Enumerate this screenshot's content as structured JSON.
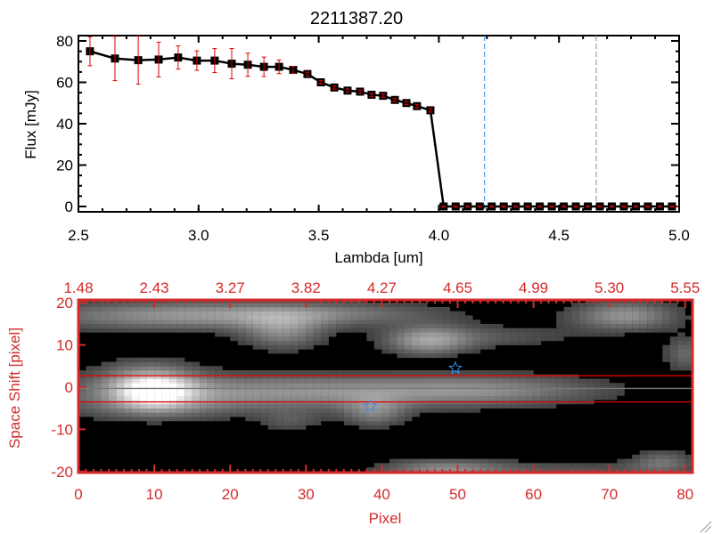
{
  "chart_data": [
    {
      "type": "line",
      "title": "2211387.20",
      "xlabel": "Lambda [um]",
      "ylabel": "Flux [mJy]",
      "xlim": [
        2.5,
        5.0
      ],
      "ylim": [
        -2,
        82
      ],
      "xticks": [
        "2.5",
        "3.0",
        "3.5",
        "4.0",
        "4.5",
        "5.0"
      ],
      "yticks": [
        "0",
        "20",
        "40",
        "60",
        "80"
      ],
      "series": [
        {
          "name": "flux",
          "x": [
            2.548,
            2.652,
            2.749,
            2.834,
            2.915,
            2.993,
            3.067,
            3.138,
            3.205,
            3.272,
            3.335,
            3.394,
            3.453,
            3.509,
            3.565,
            3.62,
            3.672,
            3.72,
            3.768,
            3.817,
            3.865,
            3.909,
            3.965,
            4.02,
            4.07,
            4.12,
            4.17,
            4.22,
            4.27,
            4.32,
            4.37,
            4.42,
            4.47,
            4.52,
            4.57,
            4.62,
            4.67,
            4.72,
            4.77,
            4.82,
            4.87,
            4.92,
            4.97
          ],
          "y": [
            75,
            71.5,
            70.7,
            71,
            72,
            70.5,
            70.5,
            69,
            68.5,
            67.5,
            67.5,
            66,
            64,
            60,
            57.5,
            56,
            55.5,
            54,
            53.5,
            51.5,
            50,
            48.5,
            46.5,
            0,
            0,
            0,
            0,
            0,
            0,
            0,
            0,
            0,
            0,
            0,
            0,
            0,
            0,
            0,
            0,
            0,
            0,
            0,
            0
          ],
          "yerr": [
            7,
            10.7,
            11.6,
            8.4,
            5.6,
            4.7,
            5.8,
            7.3,
            5.6,
            4.7,
            3.3,
            1.7,
            0.9,
            0.8,
            0.8,
            0.8,
            0.8,
            0.8,
            0.8,
            0.8,
            0.8,
            0.8,
            0.9,
            0.3,
            0.3,
            0.3,
            0.3,
            0.3,
            0.3,
            0.3,
            0.3,
            0.3,
            0.3,
            0.3,
            0.3,
            0.3,
            0.3,
            0.3,
            0.3,
            0.3,
            0.3,
            0.3,
            0.3
          ]
        }
      ],
      "vlines": [
        {
          "x": 4.19,
          "color": "#3a8ee6"
        },
        {
          "x": 4.655,
          "color": "#888888"
        }
      ],
      "zero_line": {
        "from": 4.0,
        "to": 5.0,
        "color": "#e00000"
      },
      "colors": {
        "line": "#000000",
        "error": "#e00000"
      }
    },
    {
      "type": "heatmap",
      "xlabel": "Pixel",
      "ylabel": "Space Shift [pixel]",
      "xlim": [
        0,
        81
      ],
      "ylim": [
        -21,
        21
      ],
      "xticks": [
        "0",
        "10",
        "20",
        "30",
        "40",
        "50",
        "60",
        "70",
        "80"
      ],
      "yticks": [
        "-20",
        "-10",
        "0",
        "10",
        "20"
      ],
      "top_xticks": [
        "1.48",
        "2.43",
        "3.27",
        "3.82",
        "4.27",
        "4.65",
        "4.99",
        "5.30",
        "5.55"
      ],
      "blobs": [
        {
          "x": 10,
          "y": -1,
          "sx": 3.5,
          "sy": 2.6,
          "amp": 0.75
        },
        {
          "x": 28,
          "y": -1,
          "sx": 22,
          "sy": 3,
          "amp": 0.5
        },
        {
          "x": 55,
          "y": -0.5,
          "sx": 10,
          "sy": 2.5,
          "amp": 0.25
        },
        {
          "x": 9,
          "y": 3,
          "sx": 5,
          "sy": 3,
          "amp": 0.3
        },
        {
          "x": 10,
          "y": -5,
          "sx": 8,
          "sy": 2.5,
          "amp": 0.25
        },
        {
          "x": 12,
          "y": 17,
          "sx": 14,
          "sy": 2.5,
          "amp": 0.45
        },
        {
          "x": 33,
          "y": 17.5,
          "sx": 12,
          "sy": 2,
          "amp": 0.3
        },
        {
          "x": 27,
          "y": 13,
          "sx": 4,
          "sy": 3,
          "amp": 0.4
        },
        {
          "x": 46,
          "y": 11,
          "sx": 4,
          "sy": 2.5,
          "amp": 0.5
        },
        {
          "x": 55,
          "y": 12,
          "sx": 8,
          "sy": 2,
          "amp": 0.2
        },
        {
          "x": 72,
          "y": 17,
          "sx": 5,
          "sy": 2.5,
          "amp": 0.5
        },
        {
          "x": 80,
          "y": 8,
          "sx": 2,
          "sy": 3,
          "amp": 0.3
        },
        {
          "x": 48,
          "y": -19.5,
          "sx": 6,
          "sy": 1.8,
          "amp": 0.4
        },
        {
          "x": 65,
          "y": -19.5,
          "sx": 12,
          "sy": 1.5,
          "amp": 0.2
        },
        {
          "x": 77,
          "y": -17.5,
          "sx": 3,
          "sy": 2,
          "amp": 0.3
        },
        {
          "x": 39,
          "y": -6,
          "sx": 3,
          "sy": 2.5,
          "amp": 0.35
        },
        {
          "x": 28,
          "y": -8,
          "sx": 3,
          "sy": 2,
          "amp": 0.2
        }
      ],
      "hlines": [
        {
          "y": 2.7,
          "color": "#e00000"
        },
        {
          "y": -0.3,
          "color": "#000000"
        },
        {
          "y": -3.5,
          "color": "#e00000"
        }
      ],
      "markers": [
        {
          "x": 49.7,
          "y": 4.5,
          "symbol": "star",
          "color": "#3a8ee6"
        },
        {
          "x": 38.5,
          "y": -4.5,
          "symbol": "star",
          "color": "#3a8ee6"
        }
      ],
      "colors": {
        "axis": "#d42a2a"
      }
    }
  ]
}
